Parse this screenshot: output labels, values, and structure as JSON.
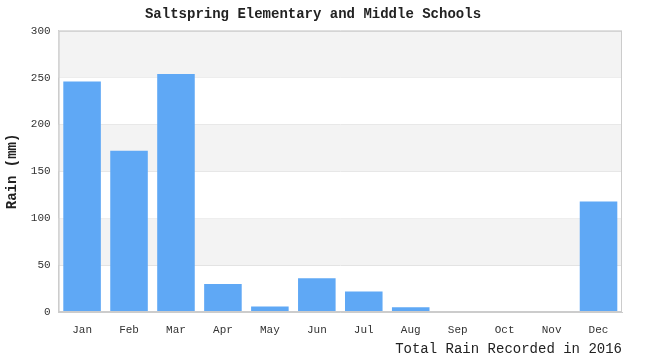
{
  "chart_data": {
    "type": "bar",
    "title": "Saltspring Elementary and Middle Schools",
    "x_label": "Total Rain Recorded in 2016",
    "y_label": "Rain (mm)",
    "categories": [
      "Jan",
      "Feb",
      "Mar",
      "Apr",
      "May",
      "Jun",
      "Jul",
      "Aug",
      "Sep",
      "Oct",
      "Nov",
      "Dec"
    ],
    "values": [
      246,
      172,
      254,
      30,
      6,
      36,
      22,
      5,
      0,
      0,
      0,
      118
    ],
    "color": "#5fa8f5",
    "ylim": [
      0,
      300
    ],
    "yticks": [
      0,
      50,
      100,
      150,
      200,
      250,
      300
    ],
    "grid": true
  }
}
